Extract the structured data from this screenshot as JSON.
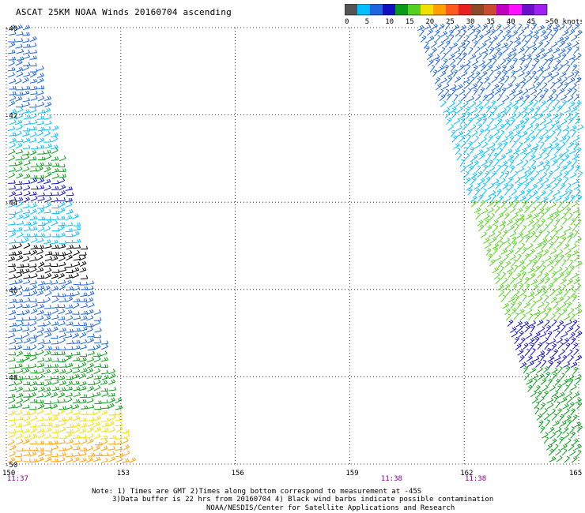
{
  "title": "ASCAT 25KM NOAA Winds 20160704 ascending",
  "legend": {
    "colors": [
      "#555555",
      "#00bfff",
      "#1e64dc",
      "#1010c0",
      "#0a9a1a",
      "#55d020",
      "#f0e000",
      "#ffa000",
      "#ff5a20",
      "#e82020",
      "#8a4a28",
      "#c84c30",
      "#c000c0",
      "#ff10ff",
      "#6a10c8",
      "#a020f0"
    ],
    "labels": [
      "0",
      "5",
      "10",
      "15",
      "20",
      "25",
      "30",
      "35",
      "40",
      "45",
      ">50 knots"
    ]
  },
  "map": {
    "x_range": [
      150,
      165
    ],
    "y_range": [
      -40,
      -50
    ],
    "lon_labels": [
      "150",
      "153",
      "156",
      "159",
      "162",
      "165"
    ],
    "lat_labels": [
      "-40",
      "-42",
      "-44",
      "-46",
      "-48",
      "-50"
    ],
    "times": [
      {
        "lon": 150.1,
        "text": "11:37"
      },
      {
        "lon": 159.9,
        "text": "11:38"
      },
      {
        "lon": 162.1,
        "text": "11:38"
      }
    ],
    "swaths": {
      "left": {
        "top_lon_range": [
          150,
          150.6
        ],
        "bottom_lon_range": [
          150,
          153.3
        ]
      },
      "right": {
        "top_lon_range": [
          160.7,
          165
        ],
        "bottom_lon_range": [
          164.2,
          165
        ]
      }
    },
    "wind_bands": [
      {
        "swath": "left",
        "lat_range": [
          -40,
          -41.9
        ],
        "color": "#1e64dc"
      },
      {
        "swath": "left",
        "lat_range": [
          -41.9,
          -42.8
        ],
        "color": "#00bfff"
      },
      {
        "swath": "left",
        "lat_range": [
          -42.8,
          -43.5
        ],
        "color": "#0a9a1a"
      },
      {
        "swath": "left",
        "lat_range": [
          -43.5,
          -44
        ],
        "color": "#1010c0"
      },
      {
        "swath": "left",
        "lat_range": [
          -44,
          -45
        ],
        "color": "#00bfff"
      },
      {
        "swath": "left",
        "lat_range": [
          -45,
          -45.8
        ],
        "color": "#000000"
      },
      {
        "swath": "left",
        "lat_range": [
          -45.8,
          -47.5
        ],
        "color": "#1e64dc"
      },
      {
        "swath": "left",
        "lat_range": [
          -47.5,
          -48.8
        ],
        "color": "#0a9a1a"
      },
      {
        "swath": "left",
        "lat_range": [
          -48.8,
          -49.5
        ],
        "color": "#f0e000"
      },
      {
        "swath": "left",
        "lat_range": [
          -49.5,
          -50
        ],
        "color": "#ffa000"
      },
      {
        "swath": "right",
        "lat_range": [
          -40,
          -41.8
        ],
        "color": "#1e64dc"
      },
      {
        "swath": "right",
        "lat_range": [
          -41.8,
          -44
        ],
        "color": "#00bfff"
      },
      {
        "swath": "right",
        "lat_range": [
          -44,
          -46.8
        ],
        "color": "#55d020"
      },
      {
        "swath": "right",
        "lat_range": [
          -46.8,
          -47.8
        ],
        "color": "#1010c0"
      },
      {
        "swath": "right",
        "lat_range": [
          -47.8,
          -50
        ],
        "color": "#0a9a1a"
      }
    ]
  },
  "notes": [
    "Note: 1) Times are GMT 2)Times along bottom correspond to measurement at -45S",
    "3)Data buffer is 22 hrs from 20160704 4) Black wind barbs indicate possible contamination",
    "NOAA/NESDIS/Center for Satellite Applications and Research"
  ]
}
